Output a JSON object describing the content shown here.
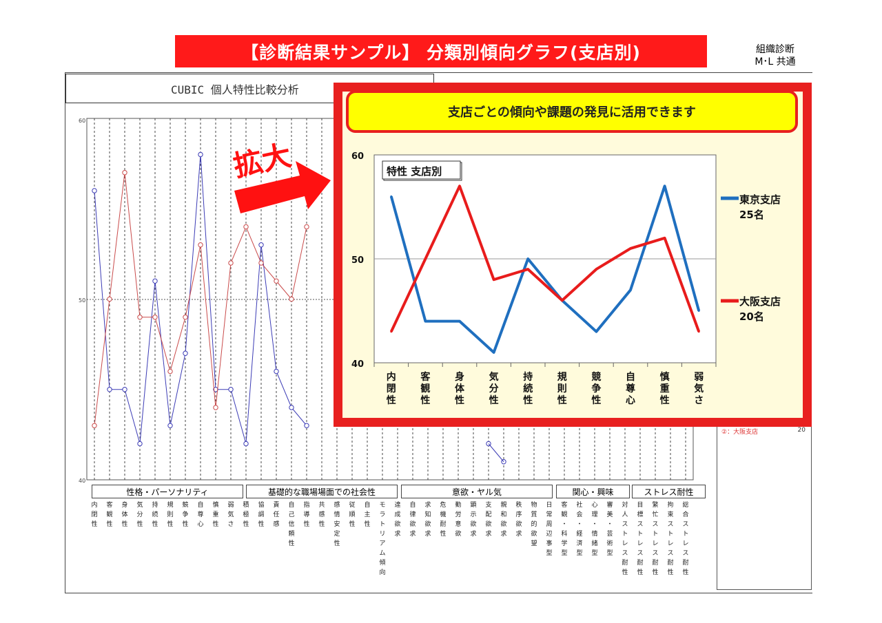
{
  "header": {
    "title": "【診断結果サンプル】 分類別傾向グラフ(支店別)",
    "org_line1": "組織診断",
    "org_line2": "M･L 共通"
  },
  "back_report": {
    "title": "CUBIC 個人特性比較分析",
    "ymax": "60",
    "ymid": "50",
    "ymin": "40",
    "category_groups": [
      "性格・パーソナリティ",
      "基礎的な職場場面での社会性",
      "意欲・ヤル気",
      "関心・興味",
      "ストレス耐性"
    ],
    "traits_visible": [
      "内閉性",
      "客観性",
      "身体性",
      "気分性",
      "持続性",
      "規則性",
      "競争性",
      "自尊心",
      "慎重性",
      "弱気さ",
      "積極性",
      "協調性",
      "責任感",
      "自己信頼性",
      "指導性",
      "共感性",
      "感情安定性",
      "従順性",
      "自主性",
      "モラトリアム傾向",
      "達成欲求",
      "自律欲求",
      "求知欲求",
      "危機耐性",
      "勤労意欲",
      "顕示欲求",
      "支配欲求",
      "親和欲求",
      "秩序欲求",
      "物質的欲望",
      "日常周辺事型",
      "客観・科学型",
      "社会・経済型",
      "心理・情緒型",
      "審美・芸術型",
      "対人ストレス耐性",
      "目標ストレス耐性",
      "繁忙ストレス耐性",
      "拘束ストレス耐性",
      "総合ストレス耐性"
    ],
    "legend_osaka": "②：大阪支店",
    "legend_osaka_n": "20",
    "series": [
      {
        "name": "tokyo",
        "color": "#3b3bb5",
        "values": [
          56,
          45,
          45,
          42,
          51,
          43,
          47,
          58,
          45,
          45,
          42,
          53,
          46,
          44,
          43
        ]
      },
      {
        "name": "osaka",
        "color": "#c94a4a",
        "values": [
          43,
          50,
          57,
          49,
          49,
          46,
          49,
          53,
          44,
          52,
          54,
          52,
          51,
          50,
          54
        ]
      }
    ],
    "tokyo_tail": [
      42,
      41
    ],
    "ylim": [
      40,
      60
    ]
  },
  "zoom": {
    "label": "拡大",
    "callout": "支店ごとの傾向や課題の発見に活用できます"
  },
  "chart_data": {
    "type": "line",
    "title": "特性 支店別",
    "categories": [
      "内閉性",
      "客観性",
      "身体性",
      "気分性",
      "持続性",
      "規則性",
      "競争性",
      "自尊心",
      "慎重性",
      "弱気さ"
    ],
    "series": [
      {
        "name": "東京支店",
        "count": "25名",
        "color": "#1f6fbf",
        "values": [
          56,
          44,
          44,
          41,
          50,
          46,
          43,
          47,
          57,
          45
        ]
      },
      {
        "name": "大阪支店",
        "count": "20名",
        "color": "#e81c1c",
        "values": [
          43,
          50,
          57,
          48,
          49,
          46,
          49,
          51,
          52,
          43
        ]
      }
    ],
    "ylim": [
      40,
      60
    ],
    "yticks": [
      "40",
      "50",
      "60"
    ],
    "grid": "horizontal at 50"
  }
}
